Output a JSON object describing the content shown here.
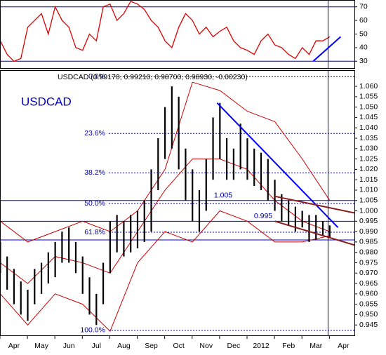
{
  "chart_data": [
    {
      "type": "line",
      "x": [
        -0.5,
        -0.25,
        0,
        0.25,
        0.5,
        0.75,
        1,
        1.25,
        1.5,
        1.75,
        2,
        2.25,
        2.5,
        2.75,
        3,
        3.25,
        3.5,
        3.75,
        4,
        4.25,
        4.5,
        4.75,
        5,
        5.25,
        5.5,
        5.75,
        6,
        6.25,
        6.5,
        6.75,
        7,
        7.25,
        7.5,
        7.75,
        8,
        8.25,
        8.5,
        8.75,
        9,
        9.25,
        9.5,
        9.75,
        10,
        10.25,
        10.5,
        10.75,
        11,
        11.25,
        11.5
      ],
      "series": [
        {
          "color": "#e00000",
          "values": [
            45,
            35,
            30,
            32,
            55,
            60,
            65,
            50,
            70,
            60,
            55,
            40,
            38,
            50,
            45,
            70,
            72,
            60,
            65,
            74,
            72,
            68,
            60,
            55,
            45,
            40,
            55,
            65,
            60,
            50,
            55,
            48,
            52,
            55,
            45,
            40,
            38,
            35,
            45,
            50,
            42,
            40,
            35,
            32,
            40,
            35,
            45,
            45,
            48
          ]
        }
      ],
      "xlim": [
        -0.51,
        12.4
      ],
      "ylim": [
        25,
        75
      ],
      "yticks": [
        30,
        40,
        50,
        60,
        70
      ],
      "hlines": [
        {
          "value": 70
        },
        {
          "value": 30
        }
      ],
      "trendlines": [
        {
          "color": "#0000ff",
          "x": [
            10.9,
            11.9
          ],
          "y": [
            30,
            48
          ]
        }
      ],
      "vline": 11.44
    },
    {
      "type": "ohlc",
      "title": "USDCAD (0.99170, 0.99210, 0.98700, 0.98930, -0.00230)",
      "label": "USDCAD",
      "x": [
        -0.5,
        -0.25,
        0,
        0.25,
        0.5,
        0.75,
        1,
        1.25,
        1.5,
        1.75,
        2,
        2.25,
        2.5,
        2.75,
        3,
        3.25,
        3.5,
        3.75,
        4,
        4.25,
        4.5,
        4.75,
        5,
        5.25,
        5.5,
        5.75,
        6,
        6.25,
        6.5,
        6.75,
        7,
        7.25,
        7.5,
        7.75,
        8,
        8.25,
        8.5,
        8.75,
        9,
        9.25,
        9.5,
        9.75,
        10,
        10.25,
        10.5,
        10.75,
        11,
        11.25,
        11.5
      ],
      "high": [
        0.985,
        0.978,
        0.972,
        0.966,
        0.962,
        0.972,
        0.975,
        0.98,
        0.985,
        0.99,
        0.992,
        0.985,
        0.978,
        0.968,
        0.96,
        0.975,
        0.995,
        0.998,
        0.995,
        0.998,
        1.0,
        1.005,
        1.02,
        1.035,
        1.05,
        1.06,
        1.055,
        1.03,
        1.02,
        1.01,
        1.025,
        1.045,
        1.052,
        1.035,
        1.03,
        1.042,
        1.035,
        1.03,
        1.028,
        1.025,
        1.015,
        1.008,
        1.005,
        1.002,
        1.0,
        0.998,
        0.998,
        0.995,
        0.993
      ],
      "low": [
        0.97,
        0.962,
        0.955,
        0.95,
        0.947,
        0.955,
        0.96,
        0.965,
        0.968,
        0.975,
        0.975,
        0.97,
        0.96,
        0.95,
        0.945,
        0.955,
        0.97,
        0.98,
        0.978,
        0.98,
        0.982,
        0.985,
        0.99,
        1.01,
        1.025,
        1.03,
        1.02,
        1.005,
        0.995,
        0.99,
        1.0,
        1.015,
        1.025,
        1.015,
        1.015,
        1.02,
        1.015,
        1.012,
        1.01,
        1.005,
        1.0,
        0.995,
        0.993,
        0.99,
        0.992,
        0.985,
        0.986,
        0.988,
        0.987
      ],
      "color": "#000000",
      "bands": {
        "color": "#cc0000",
        "x": [
          -0.5,
          0.5,
          1.5,
          2.5,
          3.5,
          4.5,
          5.5,
          6.5,
          7.5,
          8.5,
          9.5,
          10.5,
          11.5
        ],
        "upper": [
          0.995,
          0.985,
          0.99,
          0.995,
          0.99,
          1.0,
          1.02,
          1.062,
          1.058,
          1.048,
          1.043,
          1.025,
          1.005
        ],
        "middle": [
          0.975,
          0.965,
          0.978,
          0.975,
          0.97,
          0.99,
          1.01,
          1.025,
          1.025,
          1.02,
          1.005,
          0.995,
          0.99
        ],
        "lower": [
          0.96,
          0.945,
          0.96,
          0.955,
          0.942,
          0.975,
          0.99,
          0.985,
          1.0,
          0.995,
          0.985,
          0.985,
          0.988
        ]
      },
      "fib": [
        {
          "value": 1.0646,
          "label": "0.0%"
        },
        {
          "value": 1.0373,
          "label": "23.6%"
        },
        {
          "value": 1.0183,
          "label": "38.2%"
        },
        {
          "value": 1.0035,
          "label": "50.0%"
        },
        {
          "value": 0.9897,
          "label": "61.8%"
        },
        {
          "value": 0.9424,
          "label": "100.0%"
        }
      ],
      "hlines": [
        {
          "value": 1.005,
          "label": "1.005"
        },
        {
          "value": 0.995,
          "label": "0.995"
        },
        {
          "value": 0.986
        }
      ],
      "trendlines": [
        {
          "color": "#0000ff",
          "x": [
            7.4,
            11.8
          ],
          "y": [
            1.052,
            0.992
          ]
        },
        {
          "color": "#8b1a1a",
          "x": [
            9.5,
            12.4
          ],
          "y": [
            1.007,
            0.999
          ]
        },
        {
          "color": "#8b1a1a",
          "x": [
            9.5,
            12.4
          ],
          "y": [
            0.995,
            0.9835
          ]
        }
      ],
      "vline": 11.44,
      "xlim": [
        -0.51,
        12.4
      ],
      "ylim": [
        0.94,
        1.0678
      ],
      "xticks": [
        {
          "value": 0,
          "label": "Apr"
        },
        {
          "value": 1,
          "label": "May"
        },
        {
          "value": 2,
          "label": "Jun"
        },
        {
          "value": 3,
          "label": "Jul"
        },
        {
          "value": 4,
          "label": "Aug"
        },
        {
          "value": 5,
          "label": "Sep"
        },
        {
          "value": 6,
          "label": "Oct"
        },
        {
          "value": 7,
          "label": "Nov"
        },
        {
          "value": 8,
          "label": "Dec"
        },
        {
          "value": 9,
          "label": "2012"
        },
        {
          "value": 10,
          "label": "Feb"
        },
        {
          "value": 11,
          "label": "Mar"
        },
        {
          "value": 12,
          "label": "Apr"
        }
      ],
      "yticks": [
        0.945,
        {
          "value": 0.95,
          "label": "0.950"
        },
        0.955,
        {
          "value": 0.96,
          "label": "0.960"
        },
        0.965,
        {
          "value": 0.97,
          "label": "0.970"
        },
        0.975,
        {
          "value": 0.98,
          "label": "0.980"
        },
        0.985,
        {
          "value": 0.99,
          "label": "0.990"
        },
        0.995,
        {
          "value": 1.0,
          "label": "1.000"
        },
        1.005,
        {
          "value": 1.01,
          "label": "1.010"
        },
        1.015,
        {
          "value": 1.02,
          "label": "1.020"
        },
        1.025,
        {
          "value": 1.03,
          "label": "1.030"
        },
        1.035,
        {
          "value": 1.04,
          "label": "1.040"
        },
        1.045,
        {
          "value": 1.05,
          "label": "1.050"
        },
        1.055,
        {
          "value": 1.06,
          "label": "1.060"
        }
      ]
    }
  ]
}
